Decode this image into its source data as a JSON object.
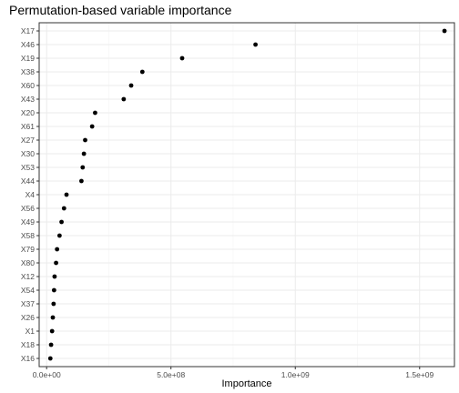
{
  "chart_data": {
    "type": "scatter",
    "title": "Permutation-based variable importance",
    "xlabel": "Importance",
    "ylabel": "",
    "xlim": [
      -30000000,
      1640000000
    ],
    "x_ticks": [
      0,
      500000000,
      1000000000,
      1500000000
    ],
    "x_tick_labels": [
      "0.0e+00",
      "5.0e+08",
      "1.0e+09",
      "1.5e+09"
    ],
    "grid": true,
    "categories": [
      "X17",
      "X46",
      "X19",
      "X38",
      "X60",
      "X43",
      "X20",
      "X61",
      "X27",
      "X30",
      "X53",
      "X44",
      "X4",
      "X56",
      "X49",
      "X58",
      "X79",
      "X80",
      "X12",
      "X54",
      "X37",
      "X26",
      "X1",
      "X18",
      "X16"
    ],
    "values": [
      1600000000,
      840000000,
      545000000,
      385000000,
      340000000,
      310000000,
      195000000,
      183000000,
      155000000,
      150000000,
      145000000,
      140000000,
      80000000,
      70000000,
      60000000,
      52000000,
      42000000,
      38000000,
      32000000,
      30000000,
      28000000,
      25000000,
      22000000,
      18000000,
      15000000
    ]
  }
}
